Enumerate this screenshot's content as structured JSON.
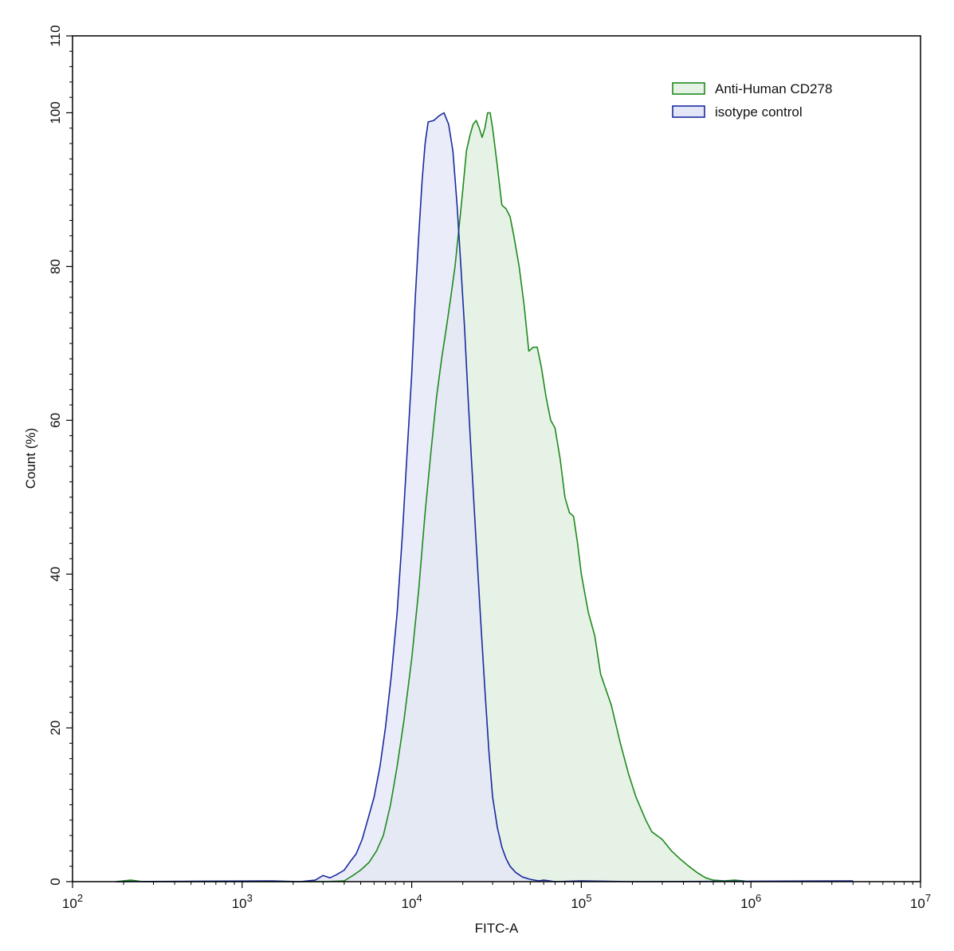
{
  "chart_data": {
    "type": "area",
    "xscale": "log",
    "xlim": [
      100,
      10000000
    ],
    "ylim": [
      0,
      110
    ],
    "xlabel": "FITC-A",
    "ylabel": "Count  (%)",
    "grid": false,
    "legend_position": "top-right",
    "x_ticks": [
      {
        "base": "10",
        "exp": "2"
      },
      {
        "base": "10",
        "exp": "3"
      },
      {
        "base": "10",
        "exp": "4"
      },
      {
        "base": "10",
        "exp": "5"
      },
      {
        "base": "10",
        "exp": "6"
      },
      {
        "base": "10",
        "exp": "7"
      }
    ],
    "y_ticks": [
      "0",
      "20",
      "40",
      "60",
      "80",
      "100",
      "110"
    ],
    "y_tick_values": [
      0,
      20,
      40,
      60,
      80,
      100,
      110
    ],
    "series": [
      {
        "name": "Anti-Human CD278",
        "color": "#1e8a1e",
        "fill": "#e6f2e6",
        "points": [
          [
            180,
            0
          ],
          [
            220,
            0.2
          ],
          [
            260,
            0
          ],
          [
            3000,
            0
          ],
          [
            4000,
            0.1
          ],
          [
            4500,
            0.8
          ],
          [
            5000,
            1.5
          ],
          [
            5600,
            2.5
          ],
          [
            6200,
            4
          ],
          [
            6800,
            6
          ],
          [
            7500,
            10
          ],
          [
            8200,
            15
          ],
          [
            9000,
            21
          ],
          [
            10000,
            29
          ],
          [
            11000,
            38
          ],
          [
            12000,
            48
          ],
          [
            13000,
            56
          ],
          [
            14000,
            63
          ],
          [
            15000,
            68
          ],
          [
            16000,
            72
          ],
          [
            17000,
            76
          ],
          [
            18000,
            80
          ],
          [
            19000,
            85
          ],
          [
            20000,
            90
          ],
          [
            21000,
            95
          ],
          [
            22000,
            97
          ],
          [
            23000,
            98.5
          ],
          [
            24000,
            99
          ],
          [
            25000,
            98
          ],
          [
            26000,
            96.8
          ],
          [
            27000,
            98
          ],
          [
            28000,
            100
          ],
          [
            29000,
            100
          ],
          [
            30000,
            98
          ],
          [
            32000,
            93
          ],
          [
            34000,
            88
          ],
          [
            36000,
            87.5
          ],
          [
            38000,
            86.5
          ],
          [
            40000,
            84
          ],
          [
            43000,
            80
          ],
          [
            46000,
            75
          ],
          [
            49000,
            69
          ],
          [
            52000,
            69.5
          ],
          [
            55000,
            69.5
          ],
          [
            58000,
            67
          ],
          [
            62000,
            63
          ],
          [
            66000,
            60
          ],
          [
            70000,
            59
          ],
          [
            75000,
            55
          ],
          [
            80000,
            50
          ],
          [
            85000,
            48
          ],
          [
            90000,
            47.5
          ],
          [
            95000,
            44
          ],
          [
            100000,
            40
          ],
          [
            110000,
            35
          ],
          [
            120000,
            32
          ],
          [
            130000,
            27
          ],
          [
            150000,
            23
          ],
          [
            170000,
            18
          ],
          [
            190000,
            14
          ],
          [
            210000,
            11
          ],
          [
            240000,
            8
          ],
          [
            260000,
            6.5
          ],
          [
            300000,
            5.5
          ],
          [
            340000,
            4
          ],
          [
            380000,
            3
          ],
          [
            430000,
            2
          ],
          [
            480000,
            1.2
          ],
          [
            540000,
            0.5
          ],
          [
            600000,
            0.2
          ],
          [
            700000,
            0.1
          ],
          [
            800000,
            0.2
          ],
          [
            900000,
            0.1
          ],
          [
            950000,
            0
          ]
        ]
      },
      {
        "name": "isotype control",
        "color": "#1a2a9e",
        "fill": "#e3e6f7",
        "points": [
          [
            180,
            0
          ],
          [
            1500,
            0.1
          ],
          [
            2200,
            0
          ],
          [
            2700,
            0.2
          ],
          [
            3000,
            0.8
          ],
          [
            3300,
            0.5
          ],
          [
            3600,
            0.9
          ],
          [
            4000,
            1.5
          ],
          [
            4300,
            2.5
          ],
          [
            4700,
            3.6
          ],
          [
            5100,
            5.5
          ],
          [
            5500,
            8
          ],
          [
            6000,
            11
          ],
          [
            6500,
            15
          ],
          [
            7000,
            20
          ],
          [
            7600,
            27
          ],
          [
            8200,
            35
          ],
          [
            8800,
            45
          ],
          [
            9400,
            56
          ],
          [
            10000,
            66
          ],
          [
            10500,
            76
          ],
          [
            11000,
            84
          ],
          [
            11500,
            91
          ],
          [
            12000,
            96
          ],
          [
            12500,
            98.8
          ],
          [
            13500,
            99
          ],
          [
            14500,
            99.6
          ],
          [
            15500,
            100
          ],
          [
            16500,
            98.5
          ],
          [
            17500,
            95
          ],
          [
            18500,
            88
          ],
          [
            19500,
            80
          ],
          [
            20500,
            72
          ],
          [
            21500,
            63
          ],
          [
            22500,
            55
          ],
          [
            24000,
            44
          ],
          [
            25500,
            34
          ],
          [
            27000,
            25
          ],
          [
            28500,
            17
          ],
          [
            30000,
            11
          ],
          [
            32000,
            7
          ],
          [
            34000,
            4.5
          ],
          [
            36000,
            3
          ],
          [
            38000,
            2
          ],
          [
            41000,
            1.2
          ],
          [
            45000,
            0.6
          ],
          [
            50000,
            0.3
          ],
          [
            56000,
            0.1
          ],
          [
            60000,
            0.2
          ],
          [
            70000,
            0
          ],
          [
            100000,
            0.1
          ],
          [
            200000,
            0
          ],
          [
            4000000,
            0.1
          ]
        ]
      }
    ]
  }
}
